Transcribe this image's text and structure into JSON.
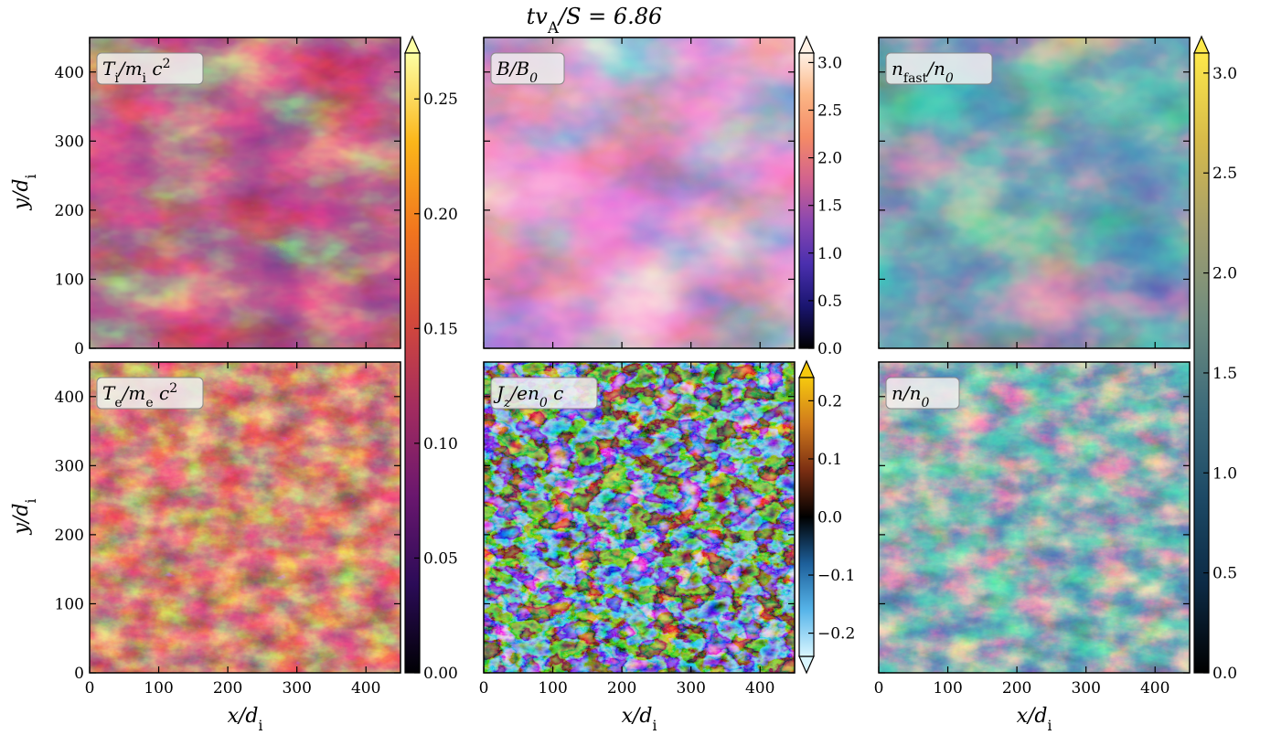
{
  "figure": {
    "title": "tv_A/S = 6.86"
  },
  "axes": {
    "xlabel": "x/d_i",
    "ylabel": "y/d_i",
    "xticks": [
      0,
      100,
      200,
      300,
      400
    ],
    "yticks": [
      0,
      100,
      200,
      300,
      400
    ],
    "xlim": [
      0,
      450
    ],
    "ylim": [
      0,
      450
    ]
  },
  "colors": {
    "inferno": [
      "#000004",
      "#2b0b57",
      "#6a176e",
      "#a32c5f",
      "#d4493a",
      "#f1761e",
      "#fbb61a",
      "#fcffa4"
    ],
    "plasma_like": [
      "#000000",
      "#1a1570",
      "#4a2fae",
      "#8a47b0",
      "#d2628e",
      "#f48a66",
      "#fbb585",
      "#fff2e6"
    ],
    "diverging": [
      "#d9f6ff",
      "#56b4e9",
      "#1d5f9a",
      "#000000",
      "#7a2e12",
      "#d07a1c",
      "#f6c90e"
    ],
    "cividis_like": [
      "#000000",
      "#0c2a45",
      "#1d4a66",
      "#3d6b7a",
      "#6e8c7f",
      "#a39e6d",
      "#d6ba4a",
      "#fde84a"
    ]
  },
  "chart_data": [
    {
      "type": "heatmap",
      "label": "T_i/m_i c^2",
      "colormap": "inferno",
      "xlabel": "",
      "ylabel": "y/d_i",
      "extent": [
        0,
        450,
        0,
        450
      ]
    },
    {
      "type": "heatmap",
      "label": "B/B_0",
      "colormap": "plasma_like",
      "colorbar": {
        "ticks": [
          "0.0",
          "0.5",
          "1.0",
          "1.5",
          "2.0",
          "2.5",
          "3.0"
        ],
        "range": [
          0,
          3.1
        ],
        "extend": "max"
      },
      "extent": [
        0,
        450,
        0,
        450
      ]
    },
    {
      "type": "heatmap",
      "label": "n_fast/n_0",
      "colormap": "cividis_like",
      "extent": [
        0,
        450,
        0,
        450
      ]
    },
    {
      "type": "heatmap",
      "label": "T_e/m_e c^2",
      "colormap": "inferno",
      "colorbar": {
        "ticks": [
          "0.00",
          "0.05",
          "0.10",
          "0.15",
          "0.20",
          "0.25"
        ],
        "range": [
          0,
          0.27
        ],
        "extend": "max",
        "shared_with": "T_i/m_i c^2"
      },
      "xlabel": "x/d_i",
      "ylabel": "y/d_i",
      "extent": [
        0,
        450,
        0,
        450
      ]
    },
    {
      "type": "heatmap",
      "label": "J_z/en_0 c",
      "colormap": "diverging",
      "colorbar": {
        "ticks": [
          "−0.2",
          "−0.1",
          "0.0",
          "0.1",
          "0.2"
        ],
        "range": [
          -0.24,
          0.24
        ],
        "extend": "both"
      },
      "xlabel": "x/d_i",
      "extent": [
        0,
        450,
        0,
        450
      ]
    },
    {
      "type": "heatmap",
      "label": "n/n_0",
      "colormap": "cividis_like",
      "colorbar": {
        "ticks": [
          "0.0",
          "0.5",
          "1.0",
          "1.5",
          "2.0",
          "2.5",
          "3.0"
        ],
        "range": [
          0,
          3.1
        ],
        "extend": "max",
        "shared_with": "n_fast/n_0"
      },
      "xlabel": "x/d_i",
      "extent": [
        0,
        450,
        0,
        450
      ]
    }
  ]
}
